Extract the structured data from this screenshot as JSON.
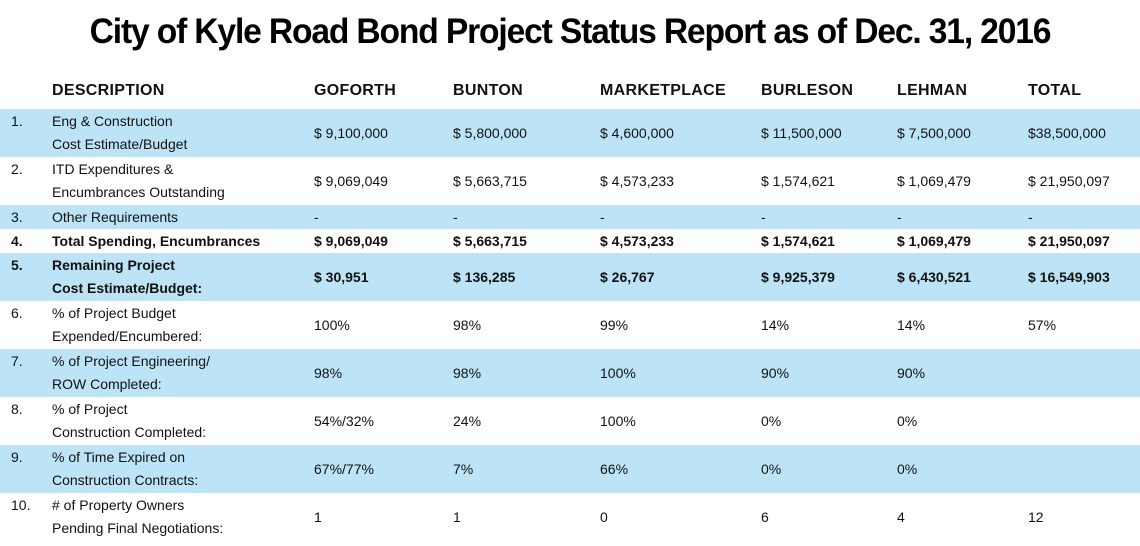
{
  "title": "City of Kyle Road Bond Project Status Report as of Dec. 31, 2016",
  "colors": {
    "row_highlight": "#bde3f6",
    "text": "#111111"
  },
  "headers": [
    "DESCRIPTION",
    "GOFORTH",
    "BUNTON",
    "MARKETPLACE",
    "BURLESON",
    "LEHMAN",
    "TOTAL"
  ],
  "rows": [
    {
      "num": "1.",
      "desc": [
        "Eng & Construction",
        "Cost Estimate/Budget"
      ],
      "values": [
        "$ 9,100,000",
        "$ 5,800,000",
        "$ 4,600,000",
        "$ 11,500,000",
        "$ 7,500,000",
        "$38,500,000"
      ]
    },
    {
      "num": "2.",
      "desc": [
        "ITD Expenditures &",
        "Encumbrances Outstanding"
      ],
      "values": [
        "$ 9,069,049",
        "$ 5,663,715",
        "$ 4,573,233",
        "$ 1,574,621",
        "$ 1,069,479",
        "$ 21,950,097"
      ]
    },
    {
      "num": "3.",
      "desc": [
        "Other Requirements"
      ],
      "values": [
        "-",
        "-",
        "-",
        "-",
        "-",
        "-"
      ]
    },
    {
      "num": "4.",
      "desc": [
        "Total Spending, Encumbrances"
      ],
      "values": [
        "$ 9,069,049",
        "$ 5,663,715",
        "$ 4,573,233",
        "$ 1,574,621",
        "$ 1,069,479",
        "$ 21,950,097"
      ]
    },
    {
      "num": "5.",
      "desc": [
        "Remaining Project",
        "Cost Estimate/Budget:"
      ],
      "values": [
        "$ 30,951",
        "$ 136,285",
        "$ 26,767",
        "$ 9,925,379",
        "$ 6,430,521",
        "$ 16,549,903"
      ]
    },
    {
      "num": "6.",
      "desc": [
        "% of Project Budget",
        "Expended/Encumbered:"
      ],
      "values": [
        "100%",
        "98%",
        "99%",
        "14%",
        "14%",
        "57%"
      ]
    },
    {
      "num": "7.",
      "desc": [
        "% of Project Engineering/",
        "ROW Completed:"
      ],
      "values": [
        "98%",
        "98%",
        "100%",
        "90%",
        "90%",
        ""
      ]
    },
    {
      "num": "8.",
      "desc": [
        "% of Project",
        "Construction Completed:"
      ],
      "values": [
        "54%/32%",
        "24%",
        "100%",
        "0%",
        "0%",
        ""
      ]
    },
    {
      "num": "9.",
      "desc": [
        "% of Time Expired on",
        "Construction Contracts:"
      ],
      "values": [
        "67%/77%",
        "7%",
        "66%",
        "0%",
        "0%",
        ""
      ]
    },
    {
      "num": "10.",
      "desc": [
        "# of Property Owners",
        "Pending Final Negotiations:"
      ],
      "values": [
        "1",
        "1",
        "0",
        "6",
        "4",
        "12"
      ]
    }
  ]
}
